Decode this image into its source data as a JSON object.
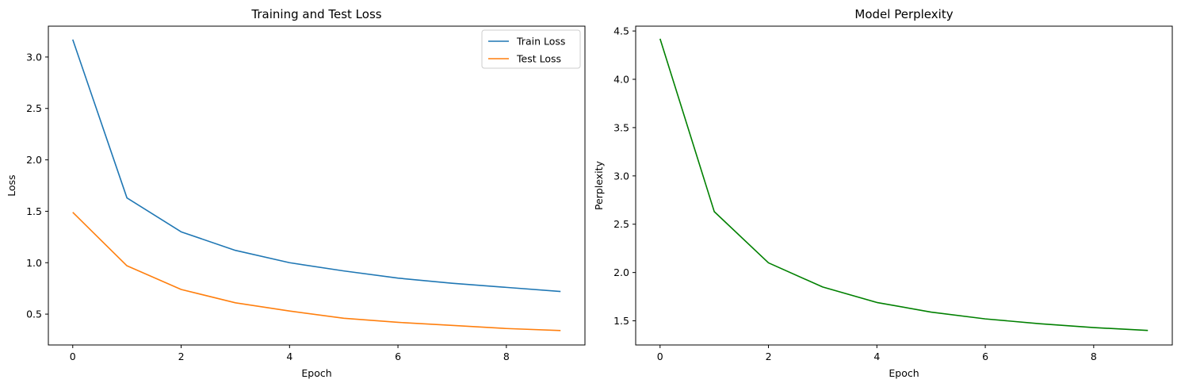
{
  "chart_data": [
    {
      "type": "line",
      "title": "Training and Test Loss",
      "xlabel": "Epoch",
      "ylabel": "Loss",
      "x": [
        0,
        1,
        2,
        3,
        4,
        5,
        6,
        7,
        8,
        9
      ],
      "xlim": [
        -0.45,
        9.45
      ],
      "ylim": [
        0.2,
        3.3
      ],
      "xticks": [
        0,
        2,
        4,
        6,
        8
      ],
      "yticks": [
        0.5,
        1.0,
        1.5,
        2.0,
        2.5,
        3.0
      ],
      "ytick_labels": [
        "0.5",
        "1.0",
        "1.5",
        "2.0",
        "2.5",
        "3.0"
      ],
      "grid": false,
      "legend_position": "top-right",
      "series": [
        {
          "name": "Train Loss",
          "color": "#1f77b4",
          "values": [
            3.17,
            1.63,
            1.3,
            1.12,
            1.0,
            0.92,
            0.85,
            0.8,
            0.76,
            0.72
          ]
        },
        {
          "name": "Test Loss",
          "color": "#ff7f0e",
          "values": [
            1.49,
            0.97,
            0.74,
            0.61,
            0.53,
            0.46,
            0.42,
            0.39,
            0.36,
            0.34
          ]
        }
      ]
    },
    {
      "type": "line",
      "title": "Model Perplexity",
      "xlabel": "Epoch",
      "ylabel": "Perplexity",
      "x": [
        0,
        1,
        2,
        3,
        4,
        5,
        6,
        7,
        8,
        9
      ],
      "xlim": [
        -0.45,
        9.45
      ],
      "ylim": [
        1.25,
        4.55
      ],
      "xticks": [
        0,
        2,
        4,
        6,
        8
      ],
      "yticks": [
        1.5,
        2.0,
        2.5,
        3.0,
        3.5,
        4.0,
        4.5
      ],
      "ytick_labels": [
        "1.5",
        "2.0",
        "2.5",
        "3.0",
        "3.5",
        "4.0",
        "4.5"
      ],
      "grid": false,
      "series": [
        {
          "color": "#008000",
          "values": [
            4.42,
            2.63,
            2.1,
            1.85,
            1.69,
            1.59,
            1.52,
            1.47,
            1.43,
            1.4
          ]
        }
      ]
    }
  ]
}
